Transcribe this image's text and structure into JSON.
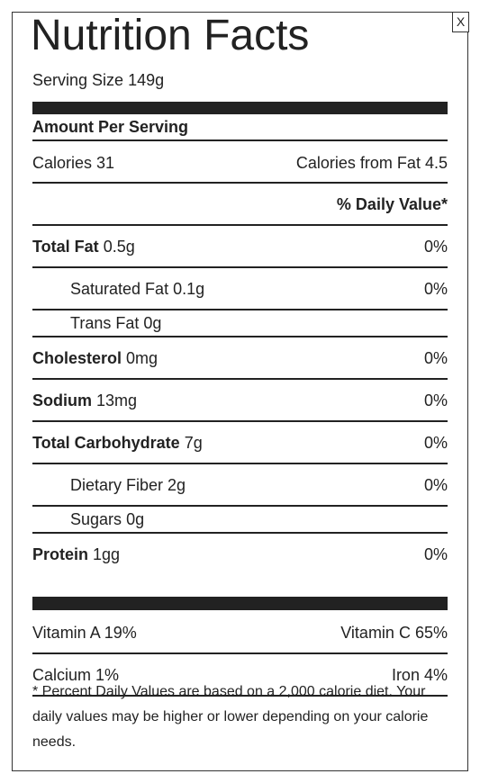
{
  "title": "Nutrition Facts",
  "close": "X",
  "serving_size": {
    "label": "Serving Size",
    "value": "149g"
  },
  "amount_per_serving": "Amount Per Serving",
  "calories": {
    "label": "Calories",
    "value": "31"
  },
  "calories_from_fat": {
    "label": "Calories from Fat",
    "value": "4.5"
  },
  "daily_value_header": "% Daily Value*",
  "nutrients": [
    {
      "name": "Total Fat",
      "amount": "0.5g",
      "daily_value": "0%",
      "sub": [
        {
          "name": "Saturated Fat",
          "amount": "0.1g",
          "daily_value": "0%"
        },
        {
          "name": "Trans Fat",
          "amount": "0g"
        }
      ]
    },
    {
      "name": "Cholesterol",
      "amount": "0mg",
      "daily_value": "0%"
    },
    {
      "name": "Sodium",
      "amount": "13mg",
      "daily_value": "0%"
    },
    {
      "name": "Total Carbohydrate",
      "amount": "7g",
      "daily_value": "0%",
      "sub": [
        {
          "name": "Dietary Fiber",
          "amount": "2g",
          "daily_value": "0%"
        },
        {
          "name": "Sugars",
          "amount": "0g"
        }
      ]
    },
    {
      "name": "Protein",
      "amount": "1gg",
      "daily_value": "0%"
    }
  ],
  "vitamins": [
    [
      {
        "name": "Vitamin A",
        "value": "19%"
      },
      {
        "name": "Vitamin C",
        "value": "65%"
      }
    ],
    [
      {
        "name": "Calcium",
        "value": "1%"
      },
      {
        "name": "Iron",
        "value": "4%"
      }
    ]
  ],
  "footnote": "* Percent Daily Values are based on a 2,000 calorie diet. Your daily values may be higher or lower depending on your calorie needs."
}
